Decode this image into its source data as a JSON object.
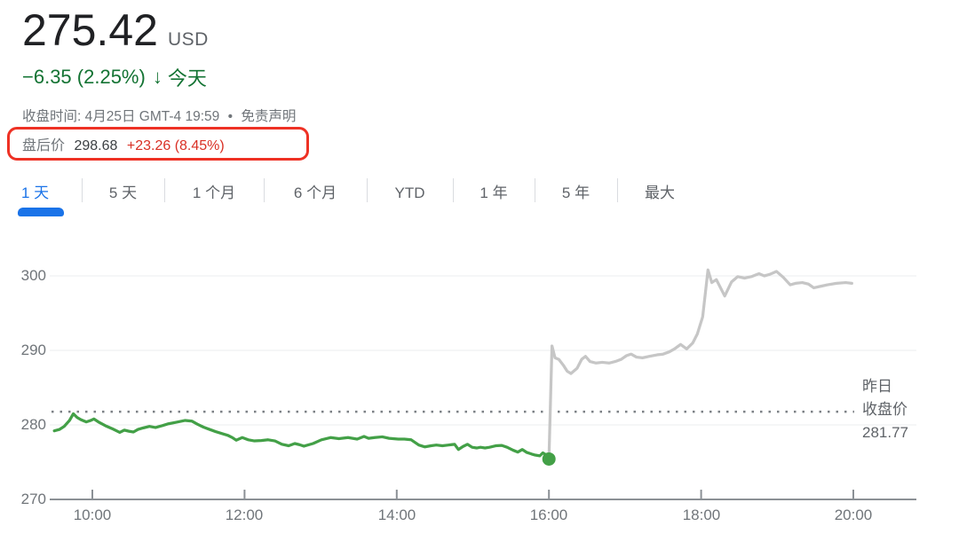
{
  "header": {
    "price": "275.42",
    "currency": "USD",
    "change": "−6.35 (2.25%)",
    "arrow": "↓",
    "period": "今天",
    "close_time": "收盘时间: 4月25日 GMT-4 19:59",
    "dot_separator": "•",
    "disclaimer": "免责声明",
    "after_hours": {
      "label": "盘后价",
      "price": "298.68",
      "change": "+23.26 (8.45%)"
    }
  },
  "annotation": {
    "description": "hand-drawn red rounded rectangle highlighting the after-hours price line",
    "color": "#ee3124"
  },
  "tabs": {
    "items": [
      "1 天",
      "5 天",
      "1 个月",
      "6 个月",
      "YTD",
      "1 年",
      "5 年",
      "最大"
    ],
    "active_index": 0
  },
  "colors": {
    "price_text": "#202124",
    "negative_green": "#137333",
    "positive_red": "#d93025",
    "accent_blue": "#1a73e8",
    "meta_gray": "#70757a",
    "chart_green": "#43a047",
    "chart_gray": "#c6c6c6",
    "annotation_red": "#ee3124"
  },
  "chart_data": {
    "type": "line",
    "title": "1-day intraday price chart with after-hours session",
    "xlabel": "",
    "ylabel": "",
    "x_axis": {
      "ticks": [
        "10:00",
        "12:00",
        "14:00",
        "16:00",
        "18:00",
        "20:00"
      ],
      "tick_hours": [
        10,
        12,
        14,
        16,
        18,
        20
      ],
      "range_hours": [
        9.5,
        20.0
      ]
    },
    "y_axis": {
      "ticks": [
        300,
        290,
        280,
        270
      ],
      "range": [
        270,
        303
      ]
    },
    "grid": "horizontal-only",
    "previous_close": {
      "value": 281.77,
      "label_lines": [
        "昨日",
        "收盘价",
        "281.77"
      ]
    },
    "end_marker": {
      "t": 16.0,
      "price": 275.42
    },
    "series": [
      {
        "name": "regular-session",
        "color": "#43a047",
        "points": [
          [
            9.5,
            279.2
          ],
          [
            9.57,
            279.4
          ],
          [
            9.63,
            279.8
          ],
          [
            9.7,
            280.6
          ],
          [
            9.75,
            281.5
          ],
          [
            9.8,
            281.0
          ],
          [
            9.85,
            280.7
          ],
          [
            9.92,
            280.4
          ],
          [
            9.98,
            280.6
          ],
          [
            10.02,
            280.8
          ],
          [
            10.08,
            280.4
          ],
          [
            10.17,
            279.9
          ],
          [
            10.26,
            279.5
          ],
          [
            10.36,
            279.0
          ],
          [
            10.42,
            279.3
          ],
          [
            10.48,
            279.15
          ],
          [
            10.54,
            279.05
          ],
          [
            10.6,
            279.4
          ],
          [
            10.67,
            279.6
          ],
          [
            10.75,
            279.8
          ],
          [
            10.83,
            279.65
          ],
          [
            10.92,
            279.9
          ],
          [
            11.0,
            280.15
          ],
          [
            11.1,
            280.35
          ],
          [
            11.22,
            280.6
          ],
          [
            11.31,
            280.5
          ],
          [
            11.38,
            280.1
          ],
          [
            11.46,
            279.7
          ],
          [
            11.54,
            279.4
          ],
          [
            11.62,
            279.1
          ],
          [
            11.7,
            278.85
          ],
          [
            11.78,
            278.6
          ],
          [
            11.84,
            278.3
          ],
          [
            11.89,
            277.95
          ],
          [
            11.97,
            278.3
          ],
          [
            12.05,
            278.0
          ],
          [
            12.13,
            277.85
          ],
          [
            12.22,
            277.9
          ],
          [
            12.31,
            278.0
          ],
          [
            12.4,
            277.85
          ],
          [
            12.49,
            277.4
          ],
          [
            12.58,
            277.2
          ],
          [
            12.66,
            277.5
          ],
          [
            12.72,
            277.35
          ],
          [
            12.78,
            277.15
          ],
          [
            12.9,
            277.5
          ],
          [
            13.01,
            278.0
          ],
          [
            13.13,
            278.3
          ],
          [
            13.24,
            278.15
          ],
          [
            13.36,
            278.3
          ],
          [
            13.48,
            278.1
          ],
          [
            13.57,
            278.45
          ],
          [
            13.63,
            278.2
          ],
          [
            13.71,
            278.3
          ],
          [
            13.81,
            278.4
          ],
          [
            13.9,
            278.2
          ],
          [
            14.02,
            278.1
          ],
          [
            14.1,
            278.1
          ],
          [
            14.19,
            278.0
          ],
          [
            14.29,
            277.3
          ],
          [
            14.37,
            277.05
          ],
          [
            14.45,
            277.2
          ],
          [
            14.52,
            277.3
          ],
          [
            14.6,
            277.2
          ],
          [
            14.68,
            277.3
          ],
          [
            14.76,
            277.4
          ],
          [
            14.81,
            276.7
          ],
          [
            14.87,
            277.1
          ],
          [
            14.93,
            277.4
          ],
          [
            14.99,
            277.0
          ],
          [
            15.05,
            276.9
          ],
          [
            15.1,
            277.0
          ],
          [
            15.16,
            276.9
          ],
          [
            15.22,
            277.0
          ],
          [
            15.3,
            277.2
          ],
          [
            15.38,
            277.25
          ],
          [
            15.45,
            277.0
          ],
          [
            15.53,
            276.6
          ],
          [
            15.59,
            276.35
          ],
          [
            15.65,
            276.7
          ],
          [
            15.71,
            276.3
          ],
          [
            15.77,
            276.1
          ],
          [
            15.82,
            275.95
          ],
          [
            15.88,
            275.85
          ],
          [
            15.92,
            276.25
          ],
          [
            15.96,
            276.0
          ],
          [
            16.0,
            275.42
          ]
        ]
      },
      {
        "name": "after-hours",
        "color": "#c6c6c6",
        "points": [
          [
            16.0,
            275.42
          ],
          [
            16.04,
            290.6
          ],
          [
            16.08,
            289.0
          ],
          [
            16.13,
            288.8
          ],
          [
            16.19,
            288.0
          ],
          [
            16.24,
            287.2
          ],
          [
            16.29,
            286.9
          ],
          [
            16.37,
            287.6
          ],
          [
            16.43,
            288.8
          ],
          [
            16.48,
            289.2
          ],
          [
            16.54,
            288.5
          ],
          [
            16.62,
            288.3
          ],
          [
            16.7,
            288.4
          ],
          [
            16.79,
            288.3
          ],
          [
            16.87,
            288.5
          ],
          [
            16.95,
            288.8
          ],
          [
            17.02,
            289.3
          ],
          [
            17.08,
            289.5
          ],
          [
            17.15,
            289.1
          ],
          [
            17.23,
            289.0
          ],
          [
            17.32,
            289.2
          ],
          [
            17.42,
            289.4
          ],
          [
            17.5,
            289.5
          ],
          [
            17.58,
            289.8
          ],
          [
            17.65,
            290.2
          ],
          [
            17.73,
            290.8
          ],
          [
            17.81,
            290.2
          ],
          [
            17.89,
            291.0
          ],
          [
            17.95,
            292.2
          ],
          [
            18.02,
            294.5
          ],
          [
            18.09,
            300.8
          ],
          [
            18.14,
            299.1
          ],
          [
            18.2,
            299.5
          ],
          [
            18.31,
            297.3
          ],
          [
            18.4,
            299.2
          ],
          [
            18.48,
            299.9
          ],
          [
            18.57,
            299.7
          ],
          [
            18.66,
            299.9
          ],
          [
            18.76,
            300.3
          ],
          [
            18.83,
            300.0
          ],
          [
            18.9,
            300.2
          ],
          [
            18.99,
            300.6
          ],
          [
            19.08,
            299.8
          ],
          [
            19.17,
            298.8
          ],
          [
            19.24,
            299.0
          ],
          [
            19.33,
            299.1
          ],
          [
            19.41,
            298.9
          ],
          [
            19.48,
            298.4
          ],
          [
            19.57,
            298.6
          ],
          [
            19.66,
            298.8
          ],
          [
            19.78,
            299.0
          ],
          [
            19.9,
            299.1
          ],
          [
            19.98,
            299.0
          ]
        ]
      }
    ]
  }
}
